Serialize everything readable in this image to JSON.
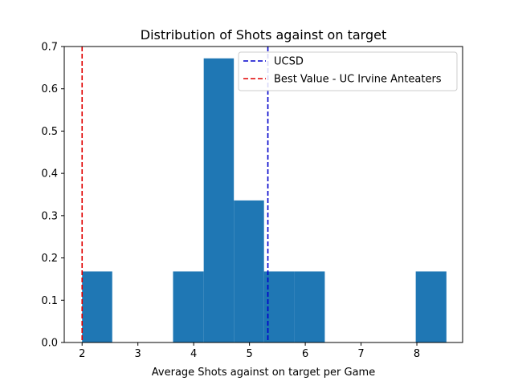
{
  "chart_data": {
    "type": "bar",
    "title": "Distribution of Shots against on target",
    "xlabel": "Average Shots against on target per Game",
    "ylabel": "",
    "xlim": [
      1.68,
      8.82
    ],
    "ylim": [
      0,
      0.7
    ],
    "x_ticks": [
      2,
      3,
      4,
      5,
      6,
      7,
      8
    ],
    "y_ticks": [
      0.0,
      0.1,
      0.2,
      0.3,
      0.4,
      0.5,
      0.6,
      0.7
    ],
    "bins": [
      {
        "x0": 2.0,
        "x1": 2.54,
        "value": 0.168
      },
      {
        "x0": 2.54,
        "x1": 3.09,
        "value": 0.0
      },
      {
        "x0": 3.09,
        "x1": 3.63,
        "value": 0.0
      },
      {
        "x0": 3.63,
        "x1": 4.18,
        "value": 0.168
      },
      {
        "x0": 4.18,
        "x1": 4.72,
        "value": 0.672
      },
      {
        "x0": 4.72,
        "x1": 5.26,
        "value": 0.336
      },
      {
        "x0": 5.26,
        "x1": 5.81,
        "value": 0.168
      },
      {
        "x0": 5.81,
        "x1": 6.35,
        "value": 0.168
      },
      {
        "x0": 6.35,
        "x1": 6.9,
        "value": 0.0
      },
      {
        "x0": 6.9,
        "x1": 7.44,
        "value": 0.0
      },
      {
        "x0": 7.44,
        "x1": 7.98,
        "value": 0.0
      },
      {
        "x0": 7.98,
        "x1": 8.53,
        "value": 0.168
      }
    ],
    "bar_color": "#1f77b4",
    "reference_lines": [
      {
        "name": "UCSD",
        "x": 5.33,
        "color": "#0000cc",
        "style": "dashed"
      },
      {
        "name": "Best Value - UC Irvine Anteaters",
        "x": 2.0,
        "color": "#e00000",
        "style": "dashed"
      }
    ],
    "legend_position": "top-right",
    "grid": false
  }
}
